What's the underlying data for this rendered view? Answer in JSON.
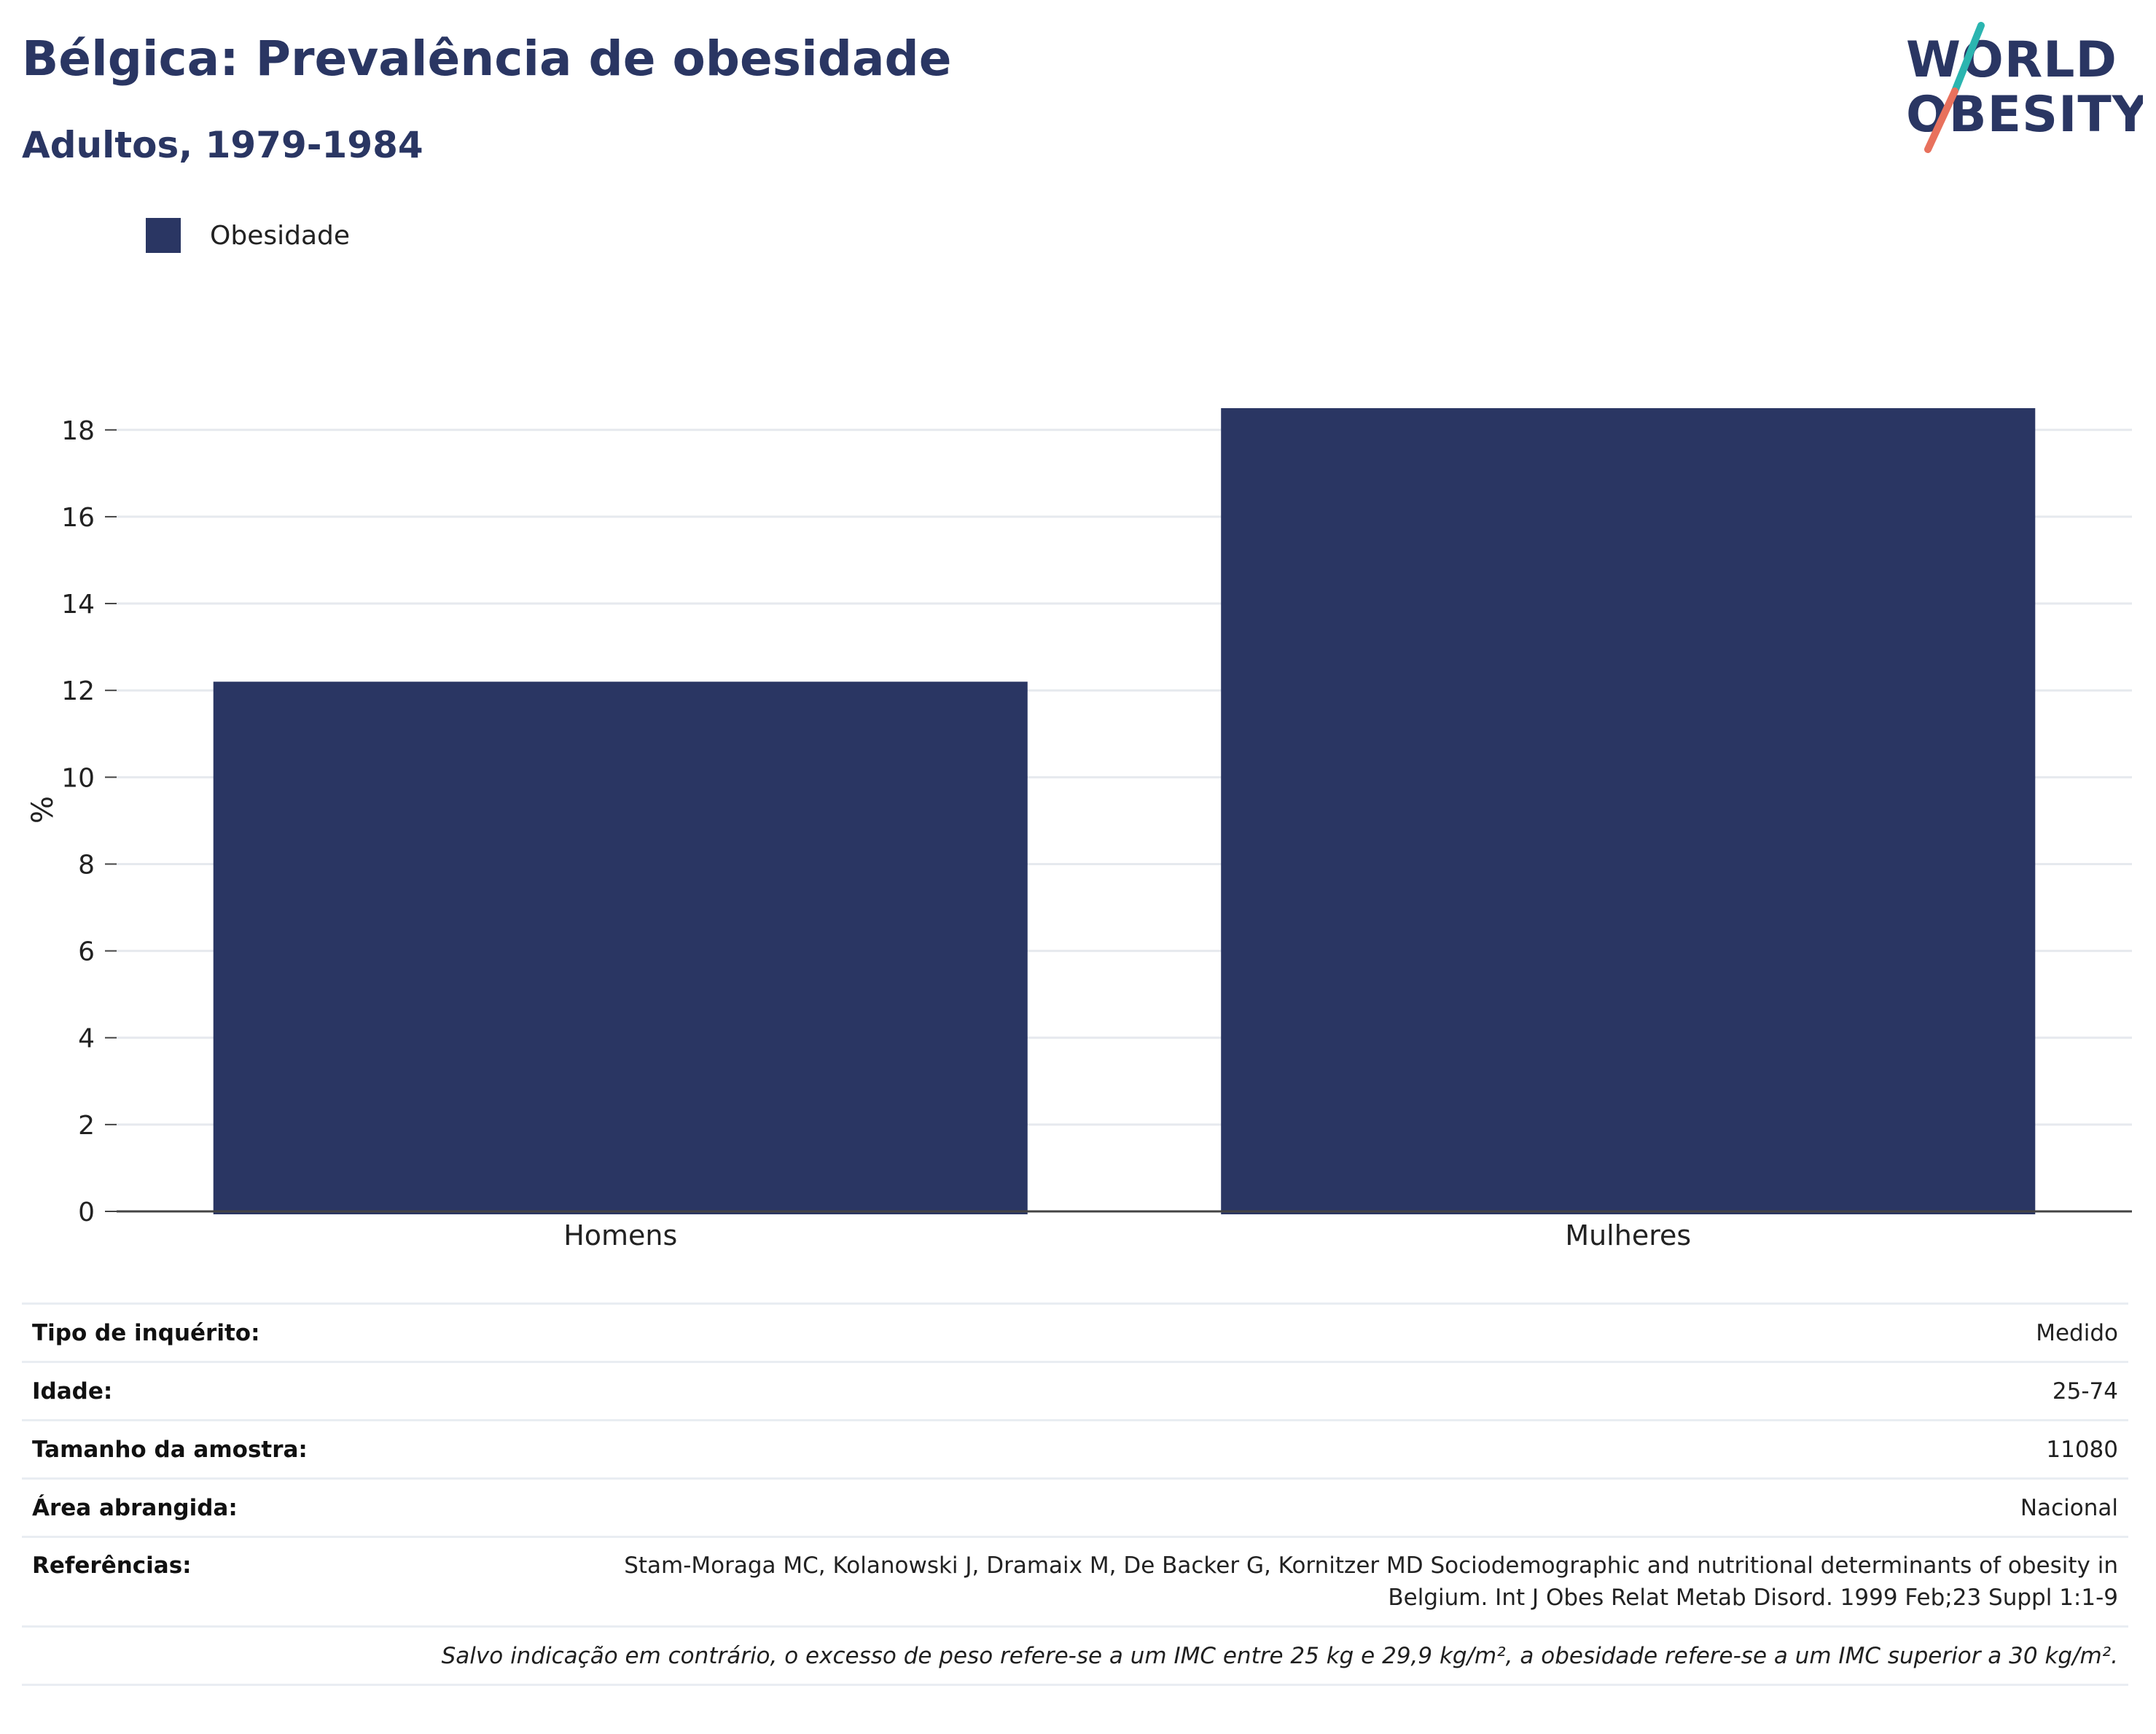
{
  "header": {
    "title": "Bélgica: Prevalência de obesidade",
    "subtitle": "Adultos, 1979-1984"
  },
  "logo": {
    "line1": "WORLD",
    "line2": "OBESITY",
    "colors": {
      "text": "#2a3663",
      "slash_top": "#2bb5b0",
      "slash_bottom": "#e8715d"
    }
  },
  "legend": {
    "label": "Obesidade",
    "color": "#2a3663"
  },
  "chart_data": {
    "type": "bar",
    "categories": [
      "Homens",
      "Mulheres"
    ],
    "series": [
      {
        "name": "Obesidade",
        "values": [
          12.2,
          18.5
        ],
        "color": "#2a3663"
      }
    ],
    "ylabel": "%",
    "xlabel": "",
    "ylim": [
      0,
      18.5
    ],
    "yticks": [
      0,
      2,
      4,
      6,
      8,
      10,
      12,
      14,
      16,
      18
    ],
    "grid": true,
    "legend_position": "top-left"
  },
  "info": {
    "rows": [
      {
        "key": "Tipo de inquérito:",
        "value": "Medido"
      },
      {
        "key": "Idade:",
        "value": "25-74"
      },
      {
        "key": "Tamanho da amostra:",
        "value": "11080"
      },
      {
        "key": "Área abrangida:",
        "value": "Nacional"
      }
    ],
    "references_label": "Referências:",
    "references_line1": "Stam-Moraga MC, Kolanowski J, Dramaix M, De Backer G, Kornitzer MD Sociodemographic and nutritional determinants of obesity in",
    "references_line2": "Belgium. Int J Obes Relat Metab Disord. 1999 Feb;23 Suppl 1:1-9",
    "note": "Salvo indicação em contrário, o excesso de peso refere-se a um IMC entre 25 kg e 29,9 kg/m², a obesidade refere-se a um IMC superior a 30 kg/m²."
  }
}
